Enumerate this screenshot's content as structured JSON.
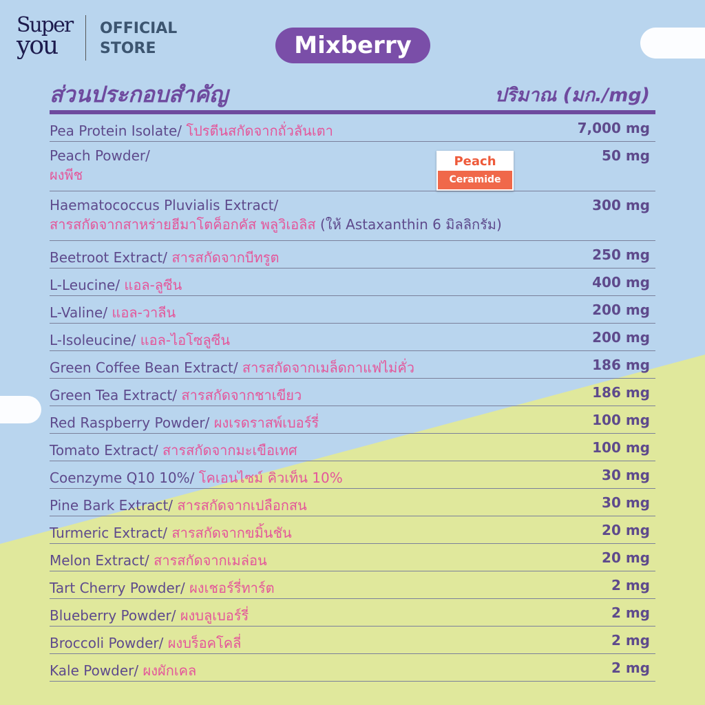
{
  "brand": {
    "logo_line1": "Super",
    "logo_line2": "you",
    "store_line1": "OFFICIAL",
    "store_line2": "STORE"
  },
  "flavor": "Mixberry",
  "header": {
    "ingredients": "ส่วนประกอบสำคัญ",
    "amount": "ปริมาณ (มก./mg)"
  },
  "badge": {
    "line1": "Peach",
    "line2": "Ceramide"
  },
  "colors": {
    "purple": "#6e4a9e",
    "pink": "#e4569a",
    "sky": "#b9d5ee",
    "meadow": "#e0e89c"
  },
  "rows": [
    {
      "en": "Pea Protein Isolate/ ",
      "th": "โปรตีนสกัดจากถั่วลันเตา",
      "amount": "7,000 mg"
    },
    {
      "en": "Peach Powder/",
      "th": "ผงพีช",
      "amount": "50 mg"
    },
    {
      "en": "Haematococcus Pluvialis Extract/",
      "th": "สารสกัดจากสาหร่ายฮีมาโตค็อกคัส พลูวิเอลิส",
      "extra": " (ให้ Astaxanthin 6 มิลลิกรัม)",
      "amount": "300 mg"
    },
    {
      "en": "Beetroot Extract/ ",
      "th": "สารสกัดจากบีทรูต",
      "amount": "250 mg"
    },
    {
      "en": "L-Leucine/ ",
      "th": "แอล-ลูซีน",
      "amount": "400 mg"
    },
    {
      "en": "L-Valine/ ",
      "th": "แอล-วาลีน",
      "amount": "200 mg"
    },
    {
      "en": "L-Isoleucine/ ",
      "th": "แอล-ไอโซลูซีน",
      "amount": "200 mg"
    },
    {
      "en": "Green Coffee Bean Extract/ ",
      "th": "สารสกัดจากเมล็ดกาแฟไม่คั่ว",
      "amount": "186 mg"
    },
    {
      "en": "Green Tea Extract/ ",
      "th": "สารสกัดจากชาเขียว",
      "amount": "186 mg"
    },
    {
      "en": "Red Raspberry Powder/ ",
      "th": "ผงเรดราสพ์เบอร์รี่",
      "amount": "100 mg"
    },
    {
      "en": "Tomato Extract/ ",
      "th": "สารสกัดจากมะเขือเทศ",
      "amount": "100 mg"
    },
    {
      "en": "Coenzyme Q10 10%/ ",
      "th": "โคเอนไซม์ คิวเท็น 10%",
      "amount": "30 mg"
    },
    {
      "en": "Pine Bark Extract/ ",
      "th": "สารสกัดจากเปลือกสน",
      "amount": "30 mg"
    },
    {
      "en": "Turmeric Extract/ ",
      "th": "สารสกัดจากขมิ้นชัน",
      "amount": "20 mg"
    },
    {
      "en": "Melon Extract/ ",
      "th": "สารสกัดจากเมล่อน",
      "amount": "20 mg"
    },
    {
      "en": "Tart Cherry Powder/ ",
      "th": "ผงเชอร์รี่ทาร์ต",
      "amount": "2 mg"
    },
    {
      "en": "Blueberry Powder/ ",
      "th": "ผงบลูเบอร์รี่",
      "amount": "2 mg"
    },
    {
      "en": "Broccoli Powder/ ",
      "th": "ผงบร็อคโคลี่",
      "amount": "2 mg"
    },
    {
      "en": "Kale Powder/ ",
      "th": "ผงผักเคล",
      "amount": "2 mg"
    }
  ]
}
